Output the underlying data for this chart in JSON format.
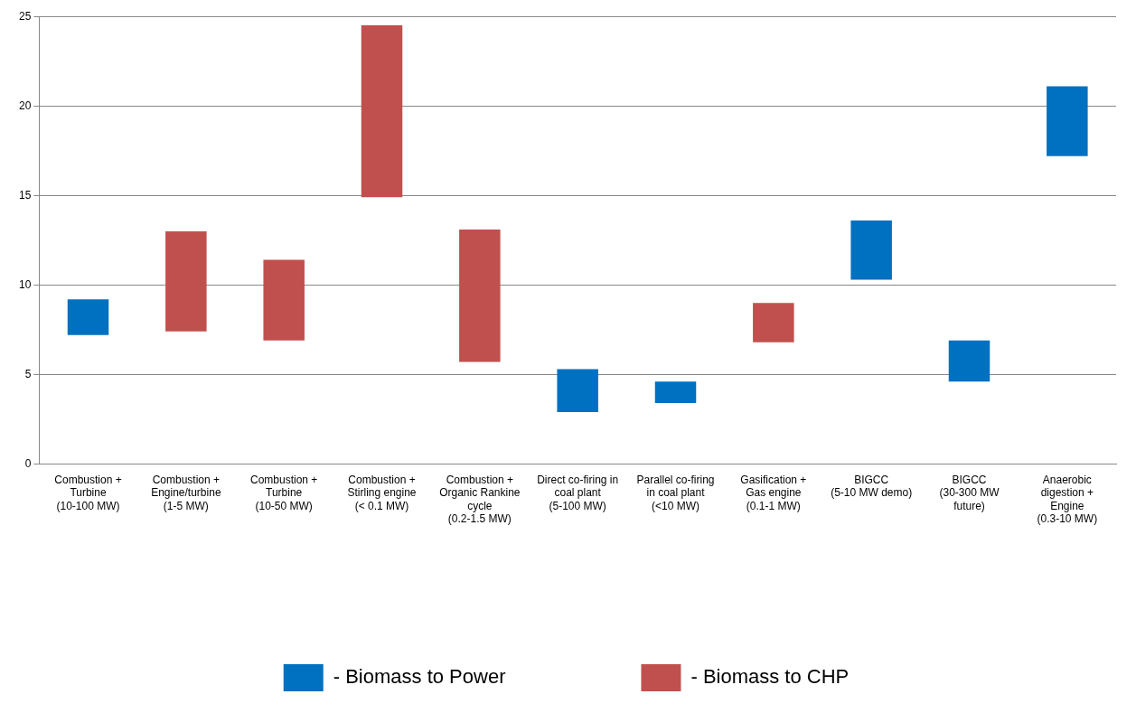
{
  "chart_data": {
    "type": "bar",
    "categories": [
      "Combustion + Turbine (10-100 MW)",
      "Combustion + Engine/turbine (1-5 MW)",
      "Combustion + Turbine (10-50 MW)",
      "Combustion + Stirling engine (< 0.1 MW)",
      "Combustion + Organic Rankine cycle (0.2-1.5 MW)",
      "Direct co-firing in coal plant (5-100 MW)",
      "Parallel co-firing in coal plant (<10 MW)",
      "Gasification + Gas engine (0.1-1 MW)",
      "BIGCC (5-10 MW demo)",
      "BIGCC (30-300 MW future)",
      "Anaerobic digestion + Engine (0.3-10 MW)"
    ],
    "series": [
      {
        "name": "- Biomass to Power",
        "color": "#0070c0",
        "base": [
          7.2,
          null,
          null,
          null,
          null,
          2.9,
          3.4,
          null,
          10.3,
          4.6,
          17.2
        ],
        "values": [
          2.0,
          null,
          null,
          null,
          null,
          2.4,
          1.2,
          null,
          3.3,
          2.3,
          3.9
        ]
      },
      {
        "name": "- Biomass to CHP",
        "color": "#c0504d",
        "base": [
          null,
          7.4,
          6.9,
          14.9,
          5.7,
          null,
          null,
          6.8,
          null,
          null,
          null
        ],
        "values": [
          null,
          5.6,
          4.5,
          9.6,
          7.4,
          null,
          null,
          2.2,
          null,
          null,
          null
        ]
      }
    ],
    "ylim": [
      0,
      25
    ],
    "yticks": [
      0,
      5,
      10,
      15,
      20,
      25
    ],
    "grid": "y",
    "legend": "bottom"
  }
}
